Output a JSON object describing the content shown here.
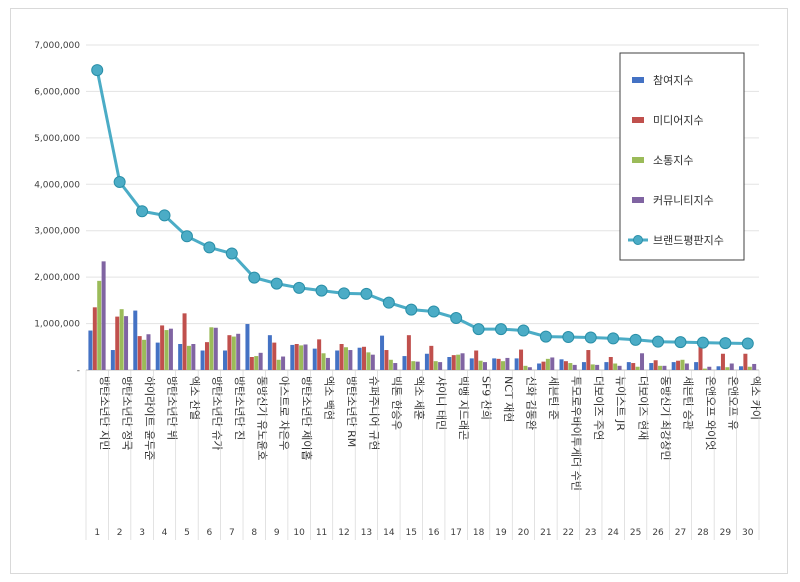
{
  "chart_data": {
    "type": "bar",
    "title": "",
    "xlabel": "",
    "ylabel": "",
    "ylim": [
      0,
      7000000
    ],
    "yticks": [
      "-",
      "1,000,000",
      "2,000,000",
      "3,000,000",
      "4,000,000",
      "5,000,000",
      "6,000,000",
      "7,000,000"
    ],
    "ytick_values": [
      0,
      1000000,
      2000000,
      3000000,
      4000000,
      5000000,
      6000000,
      7000000
    ],
    "grid": true,
    "legend_position": "top-right",
    "ranks": [
      "1",
      "2",
      "3",
      "4",
      "5",
      "6",
      "7",
      "8",
      "9",
      "10",
      "11",
      "12",
      "13",
      "14",
      "15",
      "16",
      "17",
      "18",
      "19",
      "20",
      "21",
      "22",
      "23",
      "24",
      "25",
      "26",
      "27",
      "28",
      "29",
      "30"
    ],
    "categories": [
      "방탄소년단 지민",
      "방탄소년단 정국",
      "하이라이트 윤두준",
      "방탄소년단 뷔",
      "엑소 찬열",
      "방탄소년단 슈가",
      "방탄소년단 진",
      "동방신기 유노윤호",
      "아스트로 차은우",
      "방탄소년단 제이홉",
      "엑소 백현",
      "방탄소년단 RM",
      "슈퍼주니어 규현",
      "빅톤 한승우",
      "엑소 세훈",
      "샤이니 태민",
      "빅뱅 지드래곤",
      "SF9 찬희",
      "NCT 재현",
      "신화 김동완",
      "세븐틴 준",
      "투모로우바이투게더 수빈",
      "더보이즈 주연",
      "뉴이스트 JR",
      "더보이즈 현재",
      "동방신기 최강창민",
      "세븐틴 승관",
      "온앤오프 와이엇",
      "온앤오프 유",
      "엑소 카이"
    ],
    "series": [
      {
        "name": "참여지수",
        "color": "#4472c4",
        "values": [
          850000,
          430000,
          1280000,
          590000,
          560000,
          420000,
          420000,
          990000,
          750000,
          540000,
          460000,
          420000,
          480000,
          740000,
          300000,
          350000,
          280000,
          250000,
          250000,
          250000,
          140000,
          230000,
          170000,
          170000,
          170000,
          150000,
          170000,
          170000,
          80000,
          80000
        ]
      },
      {
        "name": "미디어지수",
        "color": "#c0504d",
        "values": [
          1350000,
          1150000,
          730000,
          960000,
          1220000,
          600000,
          750000,
          280000,
          590000,
          560000,
          660000,
          560000,
          500000,
          430000,
          750000,
          520000,
          320000,
          420000,
          240000,
          440000,
          180000,
          190000,
          430000,
          280000,
          150000,
          210000,
          200000,
          500000,
          350000,
          350000
        ]
      },
      {
        "name": "소통지수",
        "color": "#9bbb59",
        "values": [
          1920000,
          1310000,
          650000,
          860000,
          520000,
          920000,
          720000,
          300000,
          220000,
          530000,
          360000,
          490000,
          380000,
          220000,
          190000,
          190000,
          330000,
          200000,
          190000,
          90000,
          240000,
          150000,
          120000,
          140000,
          70000,
          90000,
          220000,
          30000,
          60000,
          70000
        ]
      },
      {
        "name": "커뮤니티지수",
        "color": "#8064a2",
        "values": [
          2340000,
          1160000,
          770000,
          890000,
          560000,
          910000,
          780000,
          370000,
          290000,
          550000,
          260000,
          430000,
          330000,
          150000,
          180000,
          170000,
          360000,
          170000,
          260000,
          60000,
          270000,
          110000,
          110000,
          90000,
          360000,
          90000,
          140000,
          70000,
          140000,
          130000
        ]
      },
      {
        "name": "브랜드평판지수",
        "color": "#4bacc6",
        "type": "line",
        "values": [
          6460000,
          4050000,
          3420000,
          3330000,
          2880000,
          2640000,
          2510000,
          1990000,
          1860000,
          1770000,
          1710000,
          1650000,
          1640000,
          1450000,
          1300000,
          1260000,
          1120000,
          880000,
          880000,
          850000,
          720000,
          710000,
          700000,
          680000,
          650000,
          610000,
          600000,
          590000,
          580000,
          570000
        ]
      }
    ]
  }
}
